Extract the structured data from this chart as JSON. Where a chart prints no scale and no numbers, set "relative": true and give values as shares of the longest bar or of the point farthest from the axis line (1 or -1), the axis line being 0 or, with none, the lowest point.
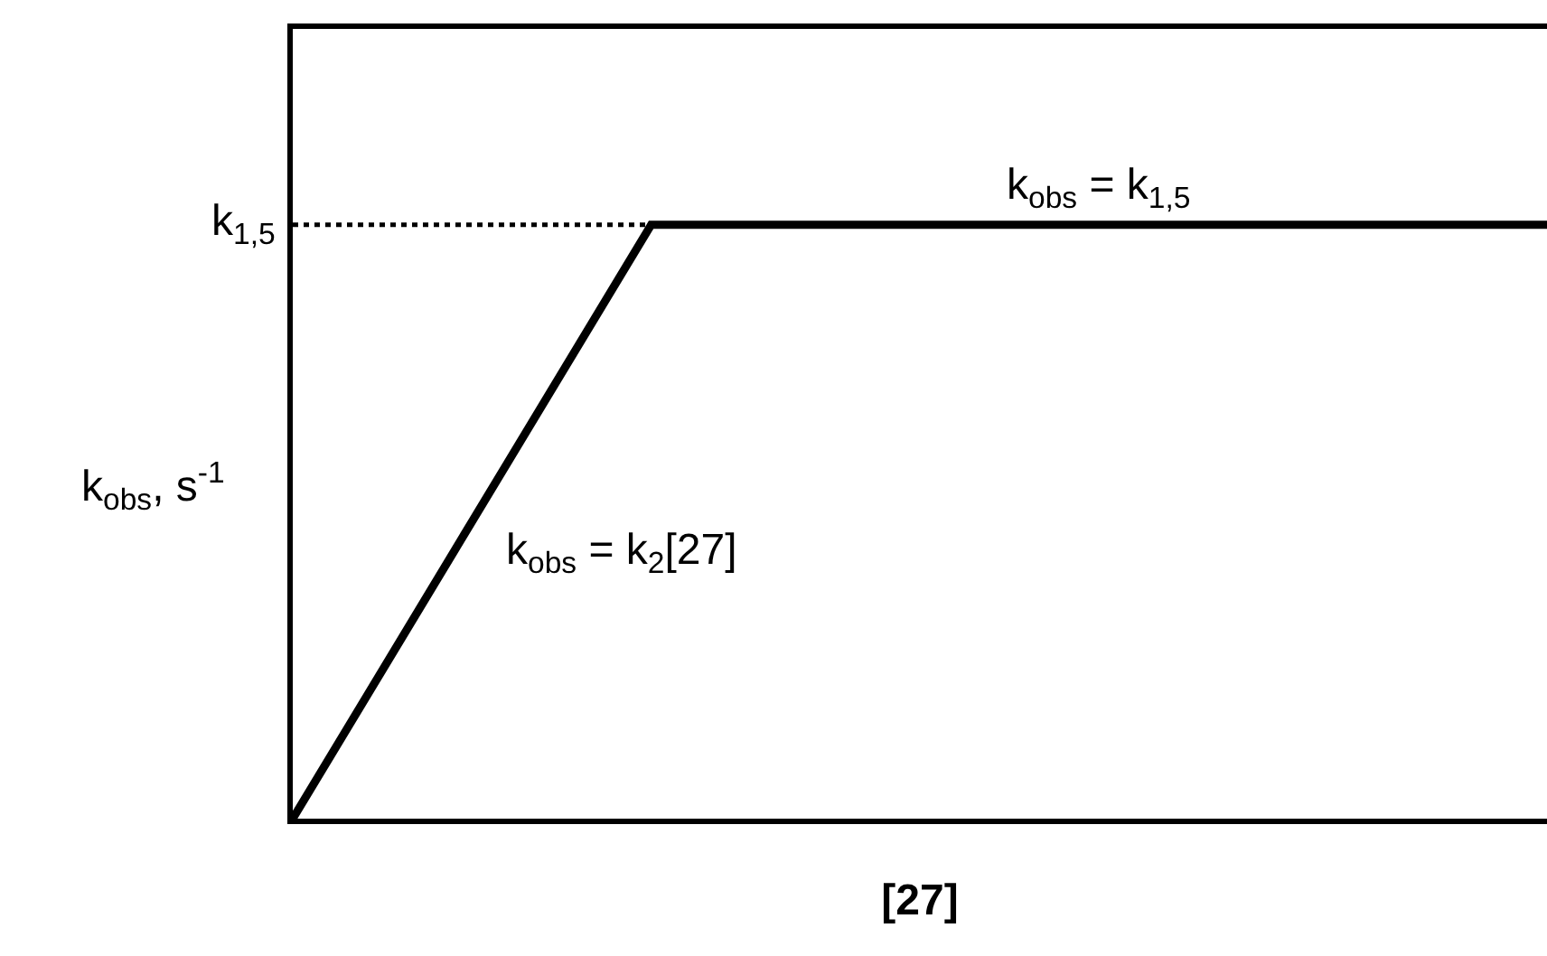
{
  "chart_data": {
    "type": "line",
    "relative": true,
    "categories": [
      null,
      null,
      null,
      null,
      null,
      null,
      null,
      null
    ],
    "series": [
      {
        "color": "#000000",
        "values": [
          0,
          0.5,
          1,
          1,
          1,
          1,
          1,
          1
        ]
      }
    ],
    "xlabel": "[27]",
    "ylabel": "k$_{obs}$, s$^{-1}$",
    "ref_lines": [
      {
        "axis": "y",
        "value": 1,
        "label": "k$_{1,5}$",
        "line_style": "dotted",
        "color": "#000000"
      }
    ],
    "annotations": [
      {
        "text": "k$_{obs}$ = k$_{1,5}$",
        "y": 1
      },
      "k$_{obs}$ = k$_{2}$[27]"
    ]
  }
}
